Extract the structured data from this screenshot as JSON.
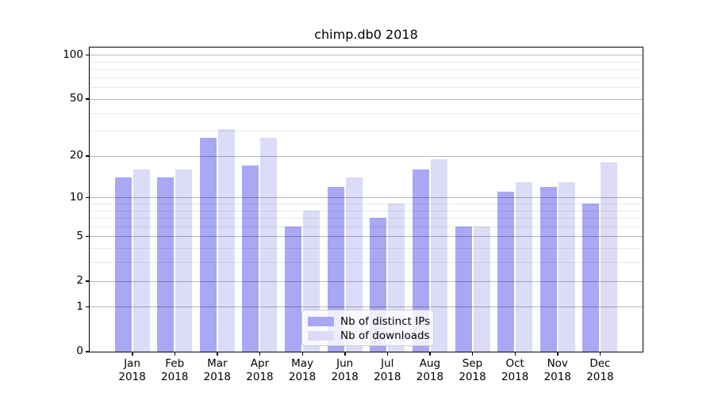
{
  "title": "chimp.db0 2018",
  "colors": {
    "distinct_ips": "#a8a8f5",
    "downloads": "#dcdcf8",
    "grid_major": "rgba(0,0,0,0.28)",
    "grid_minor": "rgba(0,0,0,0.09)",
    "axis": "#000000",
    "background": "#ffffff"
  },
  "y_axis": {
    "tick_labels": [
      "100",
      "50",
      "20",
      "10",
      "5",
      "2",
      "1",
      "0"
    ],
    "tick_values": [
      100,
      50,
      20,
      10,
      5,
      2,
      1,
      0
    ],
    "major_gridlines": [
      1,
      2,
      5,
      10,
      20,
      50,
      100
    ],
    "minor_gridlines": [
      3,
      4,
      6,
      7,
      8,
      9,
      30,
      40,
      60,
      70,
      80,
      90
    ]
  },
  "legend": {
    "items": [
      {
        "label": "Nb of distinct IPs",
        "series": "distinct_ips"
      },
      {
        "label": "Nb of downloads",
        "series": "downloads"
      }
    ],
    "position": "lower center"
  },
  "chart_data": {
    "type": "bar",
    "title": "chimp.db0 2018",
    "y_scale": "log10(1+x)",
    "ylim": [
      0,
      112
    ],
    "grid": "major+minor",
    "categories": [
      "Jan",
      "Feb",
      "Mar",
      "Apr",
      "May",
      "Jun",
      "Jul",
      "Aug",
      "Sep",
      "Oct",
      "Nov",
      "Dec"
    ],
    "year_label": "2018",
    "series": [
      {
        "name": "Nb of distinct IPs",
        "key": "distinct_ips",
        "values": [
          14,
          14,
          27,
          17,
          6,
          12,
          7,
          16,
          6,
          11,
          12,
          9
        ]
      },
      {
        "name": "Nb of downloads",
        "key": "downloads",
        "values": [
          16,
          16,
          31,
          27,
          8,
          14,
          9,
          19,
          6,
          13,
          13,
          18
        ]
      }
    ]
  }
}
